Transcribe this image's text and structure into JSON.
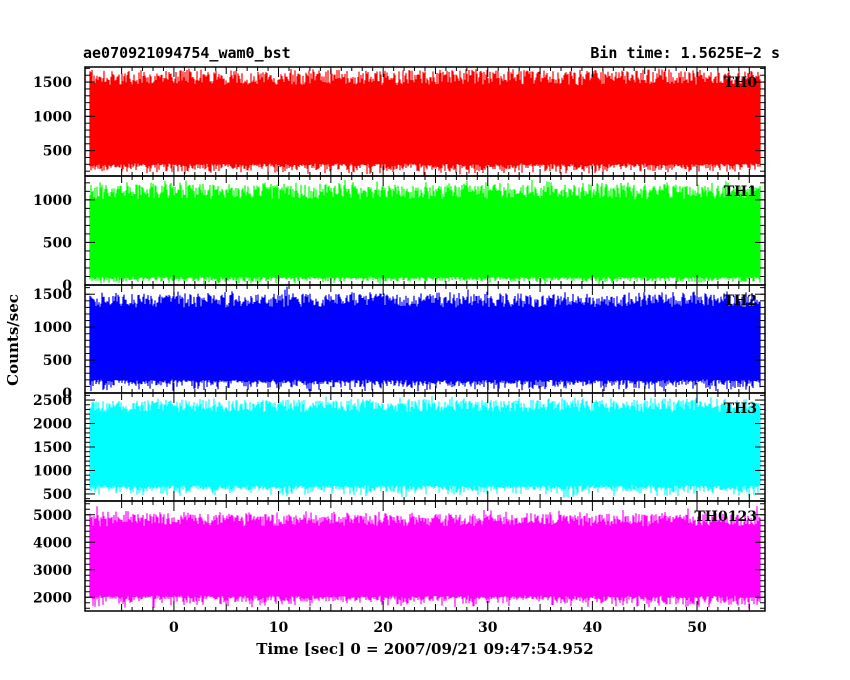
{
  "header": {
    "title": "ae070921094754_wam0_bst",
    "bin_time": "Bin time: 1.5625E−2 s"
  },
  "chart_data": {
    "type": "line",
    "title": "ae070921094754_wam0_bst",
    "xlabel": "Time [sec] 0 = 2007/09/21 09:47:54.952",
    "ylabel": "Counts/sec",
    "xlim": [
      -8.5,
      56.5
    ],
    "data_range": [
      -8.0,
      56.0
    ],
    "bin_time_s": 0.015625,
    "x_ticks": [
      0,
      10,
      20,
      30,
      40,
      50
    ],
    "grid": false,
    "panels": [
      {
        "name": "TH0",
        "color": "#ff0000",
        "ylim": [
          130,
          1720
        ],
        "y_ticks": [
          500,
          1000,
          1500
        ],
        "band": [
          290,
          1680
        ],
        "envelope": [
          130,
          1720
        ],
        "mean": 780
      },
      {
        "name": "TH1",
        "color": "#00ff00",
        "ylim": [
          0,
          1280
        ],
        "y_ticks": [
          0,
          500,
          1000
        ],
        "band": [
          80,
          1180
        ],
        "envelope": [
          0,
          1280
        ],
        "mean": 480
      },
      {
        "name": "TH2",
        "color": "#0000ff",
        "ylim": [
          0,
          1640
        ],
        "y_ticks": [
          0,
          500,
          1000,
          1500
        ],
        "band": [
          180,
          1500
        ],
        "envelope": [
          0,
          1640
        ],
        "mean": 700
      },
      {
        "name": "TH3",
        "color": "#00ffff",
        "ylim": [
          350,
          2650
        ],
        "y_ticks": [
          500,
          1000,
          1500,
          2000,
          2500
        ],
        "band": [
          650,
          2500
        ],
        "envelope": [
          400,
          2650
        ],
        "mean": 1450
      },
      {
        "name": "TH0123",
        "color": "#ff00ff",
        "ylim": [
          1500,
          5500
        ],
        "y_ticks": [
          2000,
          3000,
          4000,
          5000
        ],
        "band": [
          2000,
          5000
        ],
        "envelope": [
          1550,
          5450
        ],
        "mean": 3300
      }
    ]
  }
}
